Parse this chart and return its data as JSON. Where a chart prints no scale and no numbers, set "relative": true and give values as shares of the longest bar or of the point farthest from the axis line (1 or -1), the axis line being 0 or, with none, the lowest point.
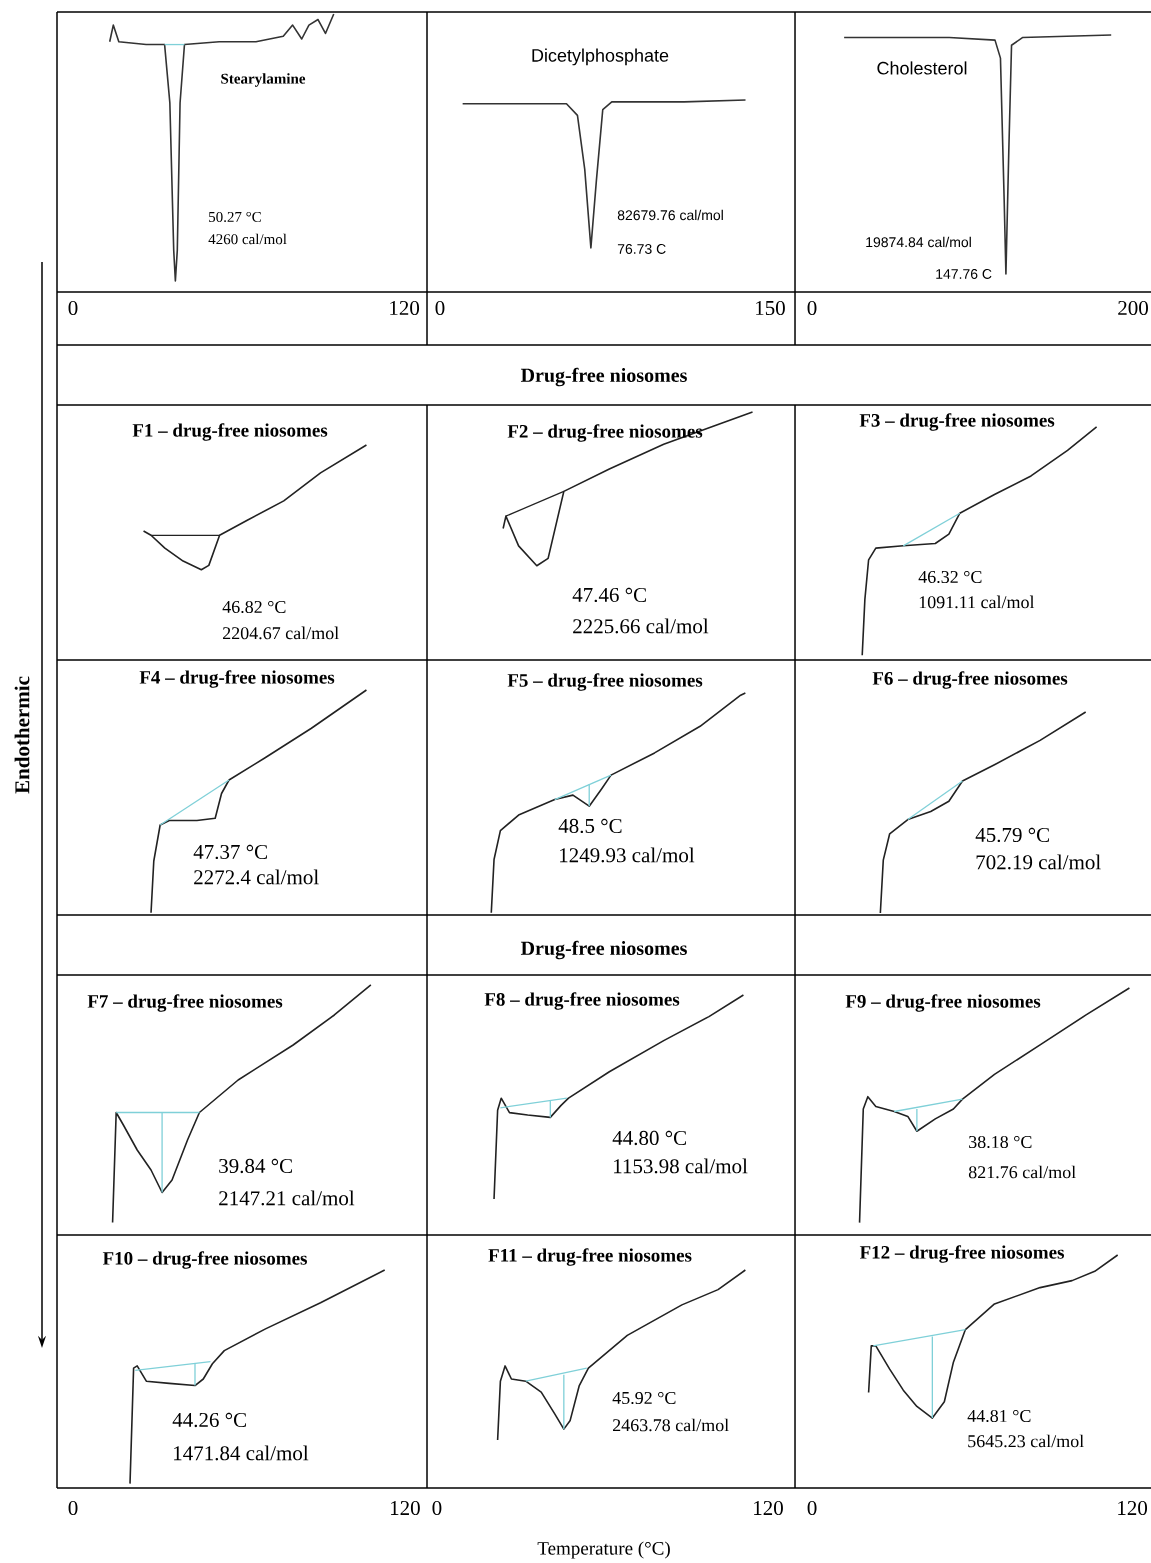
{
  "chart_data": [
    {
      "type": "line",
      "title": "Stearylamine",
      "xlim": [
        -5.8,
        128.3
      ],
      "xticks": [
        0,
        120
      ],
      "tick_labels": "x",
      "relative": true,
      "annotations": [
        "50.27 °C",
        "4260 cal/mol"
      ],
      "series": [
        {
          "color": "#333333",
          "x": [
            13.3,
            14.6,
            16.6,
            26.5,
            33.2,
            35.1,
            36.5,
            37.1,
            37.8,
            38.8,
            40.4,
            53.0,
            66.3,
            76.2,
            79.6,
            82.9,
            85.5,
            88.8,
            91.5,
            94.5
          ],
          "values": [
            0.9,
            0.96,
            0.9,
            0.89,
            0.89,
            0.68,
            0.15,
            0.04,
            0.15,
            0.68,
            0.89,
            0.9,
            0.9,
            0.92,
            0.96,
            0.91,
            0.96,
            0.98,
            0.93,
            1.0
          ]
        },
        {
          "color": "#7fd0d8",
          "x": [
            33.2,
            40.4
          ],
          "values": [
            0.89,
            0.89
          ]
        }
      ]
    },
    {
      "type": "line",
      "title": "Dicetylphosphate",
      "xlim": [
        -5.9,
        161.4
      ],
      "xticks": [
        0,
        150
      ],
      "tick_labels": "x",
      "relative": true,
      "annotations": [
        "82679.76 cal/mol",
        "76.73 C"
      ],
      "series": [
        {
          "color": "#333333",
          "x": [
            10.3,
            37.0,
            57.5,
            62.5,
            65.8,
            68.6,
            71.1,
            74.0,
            78.1,
            111.0,
            138.9
          ],
          "values": [
            0.98,
            0.98,
            0.98,
            0.92,
            0.64,
            0.23,
            0.58,
            0.95,
            0.99,
            0.99,
            1.0
          ]
        }
      ]
    },
    {
      "type": "line",
      "title": "Cholesterol",
      "xlim": [
        -10.6,
        211.2
      ],
      "xticks": [
        0,
        200
      ],
      "tick_labels": "x",
      "relative": true,
      "annotations": [
        "19874.84 cal/mol",
        "147.76 C"
      ],
      "series": [
        {
          "color": "#333333",
          "x": [
            20.0,
            85.5,
            114.0,
            117.4,
            119.7,
            120.8,
            122.6,
            124.3,
            131.1,
            186.4
          ],
          "values": [
            0.99,
            0.99,
            0.98,
            0.91,
            0.36,
            0.07,
            0.55,
            0.96,
            0.99,
            1.0
          ]
        }
      ]
    },
    {
      "type": "line",
      "title": "F1 – drug-free niosomes",
      "xlim": [
        -5.8,
        128.0
      ],
      "tick_labels": false,
      "relative": true,
      "annotations": [
        "46.82 °C",
        "2204.67 cal/mol"
      ],
      "series": [
        {
          "color": "#222222",
          "x": [
            25.5,
            28.2,
            33.2,
            39.8,
            46.4,
            49.1,
            53.0,
            63.0,
            76.2,
            89.5,
            106.1
          ],
          "values": [
            0.6,
            0.58,
            0.52,
            0.46,
            0.42,
            0.44,
            0.58,
            0.65,
            0.74,
            0.87,
            1.0
          ]
        },
        {
          "color": "#222222",
          "x": [
            28.2,
            53.0
          ],
          "values": [
            0.58,
            0.58
          ]
        }
      ]
    },
    {
      "type": "line",
      "title": "F2 – drug-free niosomes",
      "xlim": [
        -3.6,
        129.8
      ],
      "tick_labels": false,
      "relative": true,
      "annotations": [
        "47.46 °C",
        "2225.66 cal/mol",
        "Drug-free niosomes"
      ],
      "series": [
        {
          "color": "#222222",
          "x": [
            24.0,
            25.0,
            29.6,
            36.2,
            40.3,
            46.0,
            62.5,
            82.2,
            101.9,
            114.4
          ],
          "values": [
            0.53,
            0.58,
            0.46,
            0.38,
            0.41,
            0.68,
            0.77,
            0.87,
            0.95,
            1.0
          ]
        },
        {
          "color": "#222222",
          "x": [
            25.0,
            46.0
          ],
          "values": [
            0.58,
            0.68
          ]
        }
      ]
    },
    {
      "type": "line",
      "title": "F3 – drug-free niosomes",
      "xlim": [
        -6.4,
        127.1
      ],
      "tick_labels": false,
      "relative": true,
      "annotations": [
        "46.32 °C",
        "1091.11 cal/mol"
      ],
      "series": [
        {
          "color": "#222222",
          "x": [
            18.8,
            19.8,
            21.2,
            23.9,
            34.2,
            46.2,
            51.3,
            55.4,
            68.4,
            82.1,
            95.8,
            106.7
          ],
          "values": [
            0.02,
            0.26,
            0.43,
            0.48,
            0.49,
            0.5,
            0.54,
            0.63,
            0.71,
            0.79,
            0.9,
            1.0
          ]
        },
        {
          "color": "#7fd0d8",
          "x": [
            34.2,
            55.4
          ],
          "values": [
            0.49,
            0.63
          ]
        }
      ]
    },
    {
      "type": "line",
      "title": "F4 – drug-free niosomes",
      "ylabel": "Endothermic",
      "xlim": [
        -5.8,
        128.0
      ],
      "tick_labels": false,
      "relative": true,
      "annotations": [
        "47.37 °C",
        "2272.4 cal/mol"
      ],
      "series": [
        {
          "color": "#222222",
          "x": [
            28.2,
            29.2,
            31.5,
            34.8,
            44.8,
            51.4,
            53.7,
            56.4,
            69.6,
            86.2,
            106.1
          ],
          "values": [
            0.01,
            0.24,
            0.4,
            0.42,
            0.42,
            0.43,
            0.54,
            0.6,
            0.7,
            0.83,
            1.0
          ]
        },
        {
          "color": "#7fd0d8",
          "x": [
            31.5,
            56.4
          ],
          "values": [
            0.4,
            0.6
          ]
        }
      ]
    },
    {
      "type": "line",
      "title": "F5 – drug-free niosomes",
      "xlim": [
        -3.6,
        129.8
      ],
      "tick_labels": false,
      "relative": true,
      "annotations": [
        "48.5 °C",
        "1249.93 cal/mol"
      ],
      "series": [
        {
          "color": "#222222",
          "x": [
            19.7,
            20.7,
            23.0,
            29.6,
            42.7,
            49.3,
            55.2,
            59.8,
            63.1,
            78.9,
            95.4,
            110.1,
            111.8
          ],
          "values": [
            0.01,
            0.25,
            0.38,
            0.45,
            0.52,
            0.54,
            0.49,
            0.57,
            0.63,
            0.73,
            0.85,
            0.99,
            1.0
          ]
        },
        {
          "color": "#7fd0d8",
          "x": [
            42.7,
            63.1
          ],
          "values": [
            0.52,
            0.63
          ]
        },
        {
          "color": "#7fd0d8",
          "x": [
            55.2,
            55.2
          ],
          "values": [
            0.59,
            0.49
          ]
        }
      ]
    },
    {
      "type": "line",
      "title": "F6 – drug-free niosomes",
      "xlim": [
        -6.4,
        127.1
      ],
      "tick_labels": false,
      "relative": true,
      "annotations": [
        "45.79 °C",
        "702.19 cal/mol"
      ],
      "series": [
        {
          "color": "#222222",
          "x": [
            25.6,
            26.7,
            29.1,
            35.9,
            44.5,
            51.3,
            56.4,
            68.4,
            85.5,
            102.6
          ],
          "values": [
            0.01,
            0.27,
            0.4,
            0.47,
            0.51,
            0.56,
            0.66,
            0.74,
            0.86,
            1.0
          ]
        },
        {
          "color": "#7fd0d8",
          "x": [
            35.9,
            56.4
          ],
          "values": [
            0.47,
            0.66
          ]
        }
      ]
    },
    {
      "type": "line",
      "title": "F7 – drug-free niosomes",
      "xlim": [
        -5.8,
        128.0
      ],
      "tick_labels": false,
      "relative": true,
      "annotations": [
        "39.84 °C",
        "2147.21 cal/mol"
      ],
      "series": [
        {
          "color": "#222222",
          "x": [
            14.3,
            15.6,
            18.2,
            23.2,
            28.2,
            32.2,
            35.8,
            41.4,
            45.7,
            59.7,
            79.6,
            94.5,
            107.7
          ],
          "values": [
            0.05,
            0.49,
            0.44,
            0.34,
            0.26,
            0.17,
            0.22,
            0.38,
            0.49,
            0.62,
            0.76,
            0.88,
            1.0
          ]
        },
        {
          "color": "#7fd0d8",
          "x": [
            15.6,
            45.7
          ],
          "values": [
            0.49,
            0.49
          ]
        },
        {
          "color": "#7fd0d8",
          "x": [
            32.2,
            32.2
          ],
          "values": [
            0.49,
            0.17
          ]
        }
      ]
    },
    {
      "type": "line",
      "title": "F8 – drug-free niosomes",
      "xlim": [
        -3.6,
        129.8
      ],
      "tick_labels": false,
      "relative": true,
      "annotations": [
        "44.80 °C",
        "1153.98 cal/mol",
        "Drug-free niosomes"
      ],
      "series": [
        {
          "color": "#222222",
          "x": [
            20.7,
            22.0,
            23.3,
            26.3,
            32.9,
            41.1,
            45.0,
            47.7,
            62.5,
            82.2,
            98.6,
            111.1
          ],
          "values": [
            0.15,
            0.52,
            0.57,
            0.51,
            0.5,
            0.49,
            0.54,
            0.57,
            0.68,
            0.81,
            0.91,
            1.0
          ]
        },
        {
          "color": "#7fd0d8",
          "x": [
            23.0,
            47.1
          ],
          "values": [
            0.53,
            0.57
          ]
        },
        {
          "color": "#7fd0d8",
          "x": [
            41.1,
            41.1
          ],
          "values": [
            0.56,
            0.49
          ]
        }
      ]
    },
    {
      "type": "line",
      "title": "F9 – drug-free niosomes",
      "xlim": [
        -6.4,
        127.1
      ],
      "tick_labels": false,
      "relative": true,
      "annotations": [
        "38.18 °C",
        "821.76 cal/mol"
      ],
      "series": [
        {
          "color": "#222222",
          "x": [
            17.8,
            19.2,
            20.9,
            23.9,
            30.8,
            35.9,
            39.3,
            46.2,
            53.0,
            56.4,
            68.4,
            85.5,
            102.6,
            119.0
          ],
          "values": [
            0.05,
            0.51,
            0.56,
            0.52,
            0.5,
            0.48,
            0.42,
            0.47,
            0.51,
            0.55,
            0.65,
            0.77,
            0.89,
            1.0
          ]
        },
        {
          "color": "#7fd0d8",
          "x": [
            30.8,
            56.4
          ],
          "values": [
            0.5,
            0.55
          ]
        },
        {
          "color": "#7fd0d8",
          "x": [
            39.3,
            39.3
          ],
          "values": [
            0.51,
            0.42
          ]
        }
      ]
    },
    {
      "type": "line",
      "title": "F10 – drug-free niosomes",
      "xlim": [
        -5.8,
        128.0
      ],
      "xticks": [
        0,
        120
      ],
      "tick_labels": "x",
      "relative": true,
      "annotations": [
        "44.26 °C",
        "1471.84 cal/mol"
      ],
      "series": [
        {
          "color": "#222222",
          "x": [
            20.6,
            21.9,
            23.2,
            26.5,
            34.8,
            44.1,
            47.1,
            50.4,
            54.7,
            69.6,
            89.5,
            112.7
          ],
          "values": [
            0.02,
            0.55,
            0.56,
            0.49,
            0.48,
            0.47,
            0.5,
            0.57,
            0.63,
            0.73,
            0.85,
            1.0
          ]
        },
        {
          "color": "#7fd0d8",
          "x": [
            22.5,
            49.7
          ],
          "values": [
            0.54,
            0.58
          ]
        },
        {
          "color": "#7fd0d8",
          "x": [
            44.1,
            44.1
          ],
          "values": [
            0.57,
            0.47
          ]
        }
      ]
    },
    {
      "type": "line",
      "title": "F11 – drug-free niosomes",
      "xlabel": "Temperature (°C)",
      "xlim": [
        -3.6,
        129.8
      ],
      "xticks": [
        0,
        120
      ],
      "tick_labels": "x",
      "relative": true,
      "annotations": [
        "45.92 °C",
        "2463.78 cal/mol"
      ],
      "series": [
        {
          "color": "#222222",
          "x": [
            22.0,
            23.0,
            24.7,
            27.0,
            32.2,
            37.8,
            42.7,
            46.0,
            48.3,
            51.6,
            54.9,
            69.0,
            88.8,
            101.9,
            111.8
          ],
          "values": [
            0.22,
            0.49,
            0.56,
            0.5,
            0.49,
            0.44,
            0.34,
            0.27,
            0.31,
            0.47,
            0.55,
            0.7,
            0.84,
            0.91,
            1.0
          ]
        },
        {
          "color": "#7fd0d8",
          "x": [
            32.2,
            54.3
          ],
          "values": [
            0.49,
            0.55
          ]
        },
        {
          "color": "#7fd0d8",
          "x": [
            46.0,
            46.0
          ],
          "values": [
            0.52,
            0.27
          ]
        }
      ]
    },
    {
      "type": "line",
      "title": "F12 – drug-free niosomes",
      "xlim": [
        -6.4,
        127.1
      ],
      "xticks": [
        0,
        120
      ],
      "tick_labels": "x",
      "relative": true,
      "annotations": [
        "44.81 °C",
        "5645.23 cal/mol"
      ],
      "series": [
        {
          "color": "#222222",
          "x": [
            21.2,
            22.2,
            23.9,
            29.1,
            34.2,
            39.3,
            45.1,
            49.6,
            53.0,
            57.5,
            68.4,
            85.5,
            97.5,
            106.0,
            114.6
          ],
          "values": [
            0.41,
            0.61,
            0.61,
            0.51,
            0.42,
            0.35,
            0.3,
            0.37,
            0.54,
            0.68,
            0.79,
            0.86,
            0.89,
            0.93,
            1.0
          ]
        },
        {
          "color": "#7fd0d8",
          "x": [
            22.9,
            57.5
          ],
          "values": [
            0.61,
            0.68
          ]
        },
        {
          "color": "#7fd0d8",
          "x": [
            45.1,
            45.1
          ],
          "values": [
            0.65,
            0.3
          ]
        }
      ]
    }
  ]
}
